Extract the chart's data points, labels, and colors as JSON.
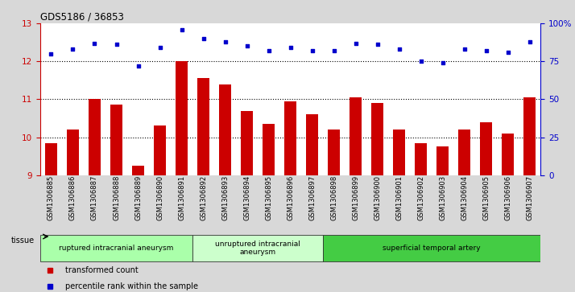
{
  "title": "GDS5186 / 36853",
  "samples": [
    "GSM1306885",
    "GSM1306886",
    "GSM1306887",
    "GSM1306888",
    "GSM1306889",
    "GSM1306890",
    "GSM1306891",
    "GSM1306892",
    "GSM1306893",
    "GSM1306894",
    "GSM1306895",
    "GSM1306896",
    "GSM1306897",
    "GSM1306898",
    "GSM1306899",
    "GSM1306900",
    "GSM1306901",
    "GSM1306902",
    "GSM1306903",
    "GSM1306904",
    "GSM1306905",
    "GSM1306906",
    "GSM1306907"
  ],
  "bar_values": [
    9.85,
    10.2,
    11.0,
    10.85,
    9.25,
    10.3,
    12.0,
    11.55,
    11.4,
    10.7,
    10.35,
    10.95,
    10.6,
    10.2,
    11.05,
    10.9,
    10.2,
    9.85,
    9.75,
    10.2,
    10.4,
    10.1,
    11.05
  ],
  "dot_values_pct": [
    80,
    83,
    87,
    86,
    72,
    84,
    96,
    90,
    88,
    85,
    82,
    84,
    82,
    82,
    87,
    86,
    83,
    75,
    74,
    83,
    82,
    81,
    88
  ],
  "bar_color": "#cc0000",
  "dot_color": "#0000cc",
  "ylim_left": [
    9,
    13
  ],
  "ylim_right": [
    0,
    100
  ],
  "yticks_left": [
    9,
    10,
    11,
    12,
    13
  ],
  "yticks_right": [
    0,
    25,
    50,
    75,
    100
  ],
  "ytick_labels_right": [
    "0",
    "25",
    "50",
    "75",
    "100%"
  ],
  "hlines": [
    10,
    11,
    12
  ],
  "groups": [
    {
      "label": "ruptured intracranial aneurysm",
      "start": 0,
      "end": 7,
      "color": "#aaffaa"
    },
    {
      "label": "unruptured intracranial\naneurysm",
      "start": 7,
      "end": 13,
      "color": "#ccffcc"
    },
    {
      "label": "superficial temporal artery",
      "start": 13,
      "end": 23,
      "color": "#44cc44"
    }
  ],
  "tissue_label": "tissue",
  "legend_items": [
    {
      "label": "transformed count",
      "color": "#cc0000"
    },
    {
      "label": "percentile rank within the sample",
      "color": "#0000cc"
    }
  ],
  "bg_color": "#d8d8d8",
  "plot_bg_color": "#ffffff"
}
